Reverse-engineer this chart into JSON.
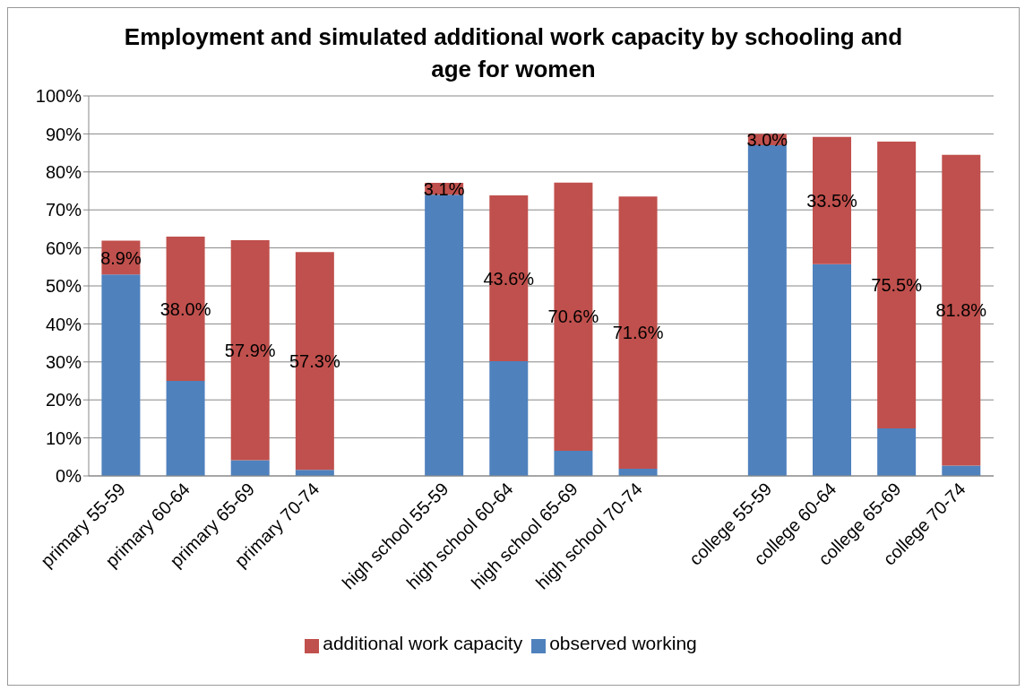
{
  "chart_data": {
    "type": "bar",
    "title": "Employment and simulated additional work capacity by schooling and age for women",
    "stacked": true,
    "categories": [
      "primary 55-59",
      "primary 60-64",
      "primary 65-69",
      "primary 70-74",
      null,
      "high school 55-59",
      "high school 60-64",
      "high school 65-69",
      "high school 70-74",
      null,
      "college 55-59",
      "college 60-64",
      "college 65-69",
      "college 70-74"
    ],
    "series": [
      {
        "name": "observed working",
        "color": "#4f81bd",
        "values": [
          53,
          25,
          4.1,
          1.6,
          null,
          74,
          30.2,
          6.6,
          1.9,
          null,
          87,
          55.7,
          12.5,
          2.7
        ]
      },
      {
        "name": "additional work capacity",
        "color": "#c0504d",
        "values": [
          8.9,
          38.0,
          57.9,
          57.3,
          null,
          3.1,
          43.6,
          70.6,
          71.6,
          null,
          3.0,
          33.5,
          75.5,
          81.8
        ],
        "value_labels": [
          "8.9%",
          "38.0%",
          "57.9%",
          "57.3%",
          null,
          "3.1%",
          "43.6%",
          "70.6%",
          "71.6%",
          null,
          "3.0%",
          "33.5%",
          "75.5%",
          "81.8%"
        ]
      }
    ],
    "ylim": [
      0,
      100
    ],
    "yticks": [
      {
        "value": 0,
        "label": "0%"
      },
      {
        "value": 10,
        "label": "10%"
      },
      {
        "value": 20,
        "label": "20%"
      },
      {
        "value": 30,
        "label": "30%"
      },
      {
        "value": 40,
        "label": "40%"
      },
      {
        "value": 50,
        "label": "50%"
      },
      {
        "value": 60,
        "label": "60%"
      },
      {
        "value": 70,
        "label": "70%"
      },
      {
        "value": 80,
        "label": "80%"
      },
      {
        "value": 90,
        "label": "90%"
      },
      {
        "value": 100,
        "label": "100%"
      }
    ],
    "grid": "y",
    "legend": "bottom"
  }
}
